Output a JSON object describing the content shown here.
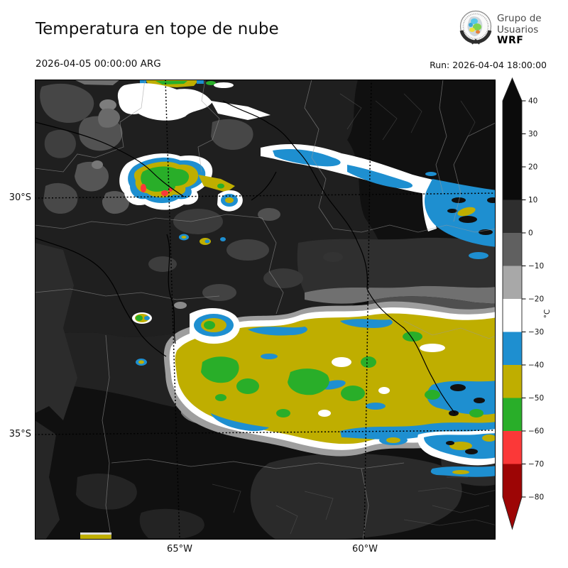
{
  "header": {
    "title": "Temperatura en tope de nube",
    "valid_time": "2026-04-05 00:00:00 ARG",
    "run_label": "Run: 2026-04-04 18:00:00"
  },
  "logo": {
    "org_line1": "Grupo de",
    "org_line2": "Usuarios",
    "org_line3": "WRF"
  },
  "map": {
    "lat_ticks": [
      "30°S",
      "35°S"
    ],
    "lon_ticks": [
      "65°W",
      "60°W"
    ]
  },
  "colorbar": {
    "unit": "°C",
    "tick_values": [
      40,
      30,
      20,
      10,
      0,
      -10,
      -20,
      -30,
      -40,
      -50,
      -60,
      -70,
      -80
    ],
    "tick_labels": [
      "40",
      "30",
      "20",
      "10",
      "0",
      "−10",
      "−20",
      "−30",
      "−40",
      "−50",
      "−60",
      "−70",
      "−80"
    ],
    "segments": [
      {
        "from": 40,
        "to": 10,
        "color": "#0b0b0b"
      },
      {
        "from": 10,
        "to": 0,
        "color": "#2e2e2e"
      },
      {
        "from": 0,
        "to": -10,
        "color": "#606060"
      },
      {
        "from": -10,
        "to": -20,
        "color": "#a8a8a8"
      },
      {
        "from": -20,
        "to": -30,
        "color": "#ffffff"
      },
      {
        "from": -30,
        "to": -40,
        "color": "#1e8fd0"
      },
      {
        "from": -40,
        "to": -50,
        "color": "#bfae00"
      },
      {
        "from": -50,
        "to": -60,
        "color": "#29ae29"
      },
      {
        "from": -60,
        "to": -70,
        "color": "#fb3838"
      },
      {
        "from": -70,
        "to": -80,
        "color": "#9d0505"
      }
    ],
    "over_arrow_color": "#0b0b0b",
    "under_arrow_color": "#9d0505"
  },
  "palette": {
    "white": "#ffffff",
    "blue": "#1e8fd0",
    "olive": "#bfae00",
    "green": "#29ae29",
    "red": "#fb3838",
    "darkred": "#9d0505"
  }
}
